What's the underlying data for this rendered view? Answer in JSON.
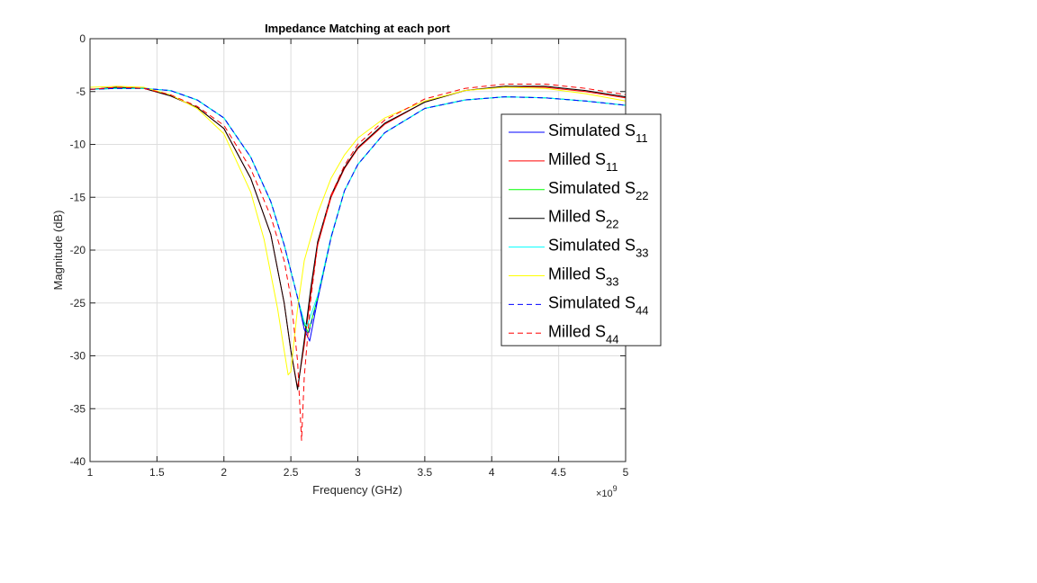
{
  "chart_data": {
    "type": "line",
    "title": "Impedance Matching at each port",
    "xlabel": "Frequency (GHz)",
    "ylabel": "Magnitude (dB)",
    "x_exponent_label": "×10",
    "x_exponent": "9",
    "xlim": [
      1,
      5
    ],
    "ylim": [
      -40,
      0
    ],
    "xticks": [
      1,
      1.5,
      2,
      2.5,
      3,
      3.5,
      4,
      4.5,
      5
    ],
    "yticks": [
      0,
      -5,
      -10,
      -15,
      -20,
      -25,
      -30,
      -35,
      -40
    ],
    "grid": true,
    "legend_position": "right",
    "series": [
      {
        "name": "Simulated S",
        "sub": "11",
        "color": "#0000ff",
        "dash": "solid",
        "x": [
          1.0,
          1.2,
          1.4,
          1.6,
          1.8,
          2.0,
          2.2,
          2.35,
          2.45,
          2.55,
          2.6,
          2.64,
          2.7,
          2.8,
          2.9,
          3.0,
          3.2,
          3.5,
          3.8,
          4.1,
          4.4,
          4.7,
          5.0
        ],
        "y": [
          -4.8,
          -4.7,
          -4.7,
          -4.9,
          -5.8,
          -7.5,
          -11.2,
          -15.4,
          -19.5,
          -24.5,
          -27.5,
          -28.6,
          -24.7,
          -18.8,
          -14.4,
          -11.9,
          -8.9,
          -6.6,
          -5.8,
          -5.5,
          -5.6,
          -5.9,
          -6.3
        ]
      },
      {
        "name": "Milled S",
        "sub": "11",
        "color": "#ff0000",
        "dash": "solid",
        "x": [
          1.0,
          1.2,
          1.4,
          1.6,
          1.8,
          2.0,
          2.2,
          2.35,
          2.45,
          2.5,
          2.55,
          2.6,
          2.65,
          2.7,
          2.8,
          2.9,
          3.0,
          3.2,
          3.5,
          3.8,
          4.1,
          4.4,
          4.7,
          5.0
        ],
        "y": [
          -4.8,
          -4.6,
          -4.7,
          -5.4,
          -6.5,
          -8.5,
          -13.2,
          -18.5,
          -25.0,
          -29.5,
          -33.0,
          -29.0,
          -24.0,
          -19.5,
          -15.0,
          -12.3,
          -10.4,
          -8.1,
          -6.0,
          -4.9,
          -4.5,
          -4.6,
          -5.0,
          -5.6
        ]
      },
      {
        "name": "Simulated S",
        "sub": "22",
        "color": "#00ff00",
        "dash": "solid",
        "x": [
          1.0,
          1.2,
          1.4,
          1.6,
          1.8,
          2.0,
          2.2,
          2.35,
          2.45,
          2.55,
          2.6,
          2.63,
          2.7,
          2.8,
          2.9,
          3.0,
          3.2,
          3.5,
          3.8,
          4.1,
          4.4,
          4.7,
          5.0
        ],
        "y": [
          -4.8,
          -4.7,
          -4.7,
          -4.9,
          -5.8,
          -7.5,
          -11.2,
          -15.4,
          -19.5,
          -24.5,
          -27.0,
          -27.8,
          -24.5,
          -18.8,
          -14.4,
          -11.9,
          -8.9,
          -6.6,
          -5.8,
          -5.5,
          -5.6,
          -5.9,
          -6.3
        ]
      },
      {
        "name": "Milled S",
        "sub": "22",
        "color": "#000000",
        "dash": "solid",
        "x": [
          1.0,
          1.2,
          1.4,
          1.6,
          1.8,
          2.0,
          2.2,
          2.35,
          2.45,
          2.5,
          2.55,
          2.6,
          2.65,
          2.7,
          2.8,
          2.9,
          3.0,
          3.2,
          3.5,
          3.8,
          4.1,
          4.4,
          4.7,
          5.0
        ],
        "y": [
          -4.8,
          -4.6,
          -4.7,
          -5.4,
          -6.5,
          -8.5,
          -13.2,
          -18.5,
          -25.0,
          -29.5,
          -33.2,
          -28.5,
          -23.5,
          -19.2,
          -14.8,
          -12.2,
          -10.3,
          -8.0,
          -6.0,
          -4.9,
          -4.5,
          -4.5,
          -4.9,
          -5.5
        ]
      },
      {
        "name": "Simulated S",
        "sub": "33",
        "color": "#00ffff",
        "dash": "solid",
        "x": [
          1.0,
          1.2,
          1.4,
          1.6,
          1.8,
          2.0,
          2.2,
          2.35,
          2.45,
          2.55,
          2.6,
          2.62,
          2.7,
          2.8,
          2.9,
          3.0,
          3.2,
          3.5,
          3.8,
          4.1,
          4.4,
          4.7,
          5.0
        ],
        "y": [
          -4.8,
          -4.7,
          -4.7,
          -4.9,
          -5.8,
          -7.5,
          -11.2,
          -15.4,
          -19.5,
          -24.5,
          -26.8,
          -27.2,
          -24.3,
          -18.7,
          -14.4,
          -11.9,
          -8.9,
          -6.6,
          -5.8,
          -5.5,
          -5.6,
          -5.9,
          -6.3
        ]
      },
      {
        "name": "Milled S",
        "sub": "33",
        "color": "#ffff00",
        "dash": "solid",
        "x": [
          1.0,
          1.2,
          1.4,
          1.6,
          1.8,
          2.0,
          2.2,
          2.3,
          2.4,
          2.45,
          2.48,
          2.5,
          2.52,
          2.55,
          2.6,
          2.7,
          2.8,
          2.9,
          3.0,
          3.2,
          3.5,
          3.8,
          4.1,
          4.4,
          4.7,
          5.0
        ],
        "y": [
          -4.6,
          -4.5,
          -4.6,
          -5.3,
          -6.6,
          -9.0,
          -14.5,
          -19.0,
          -25.5,
          -29.5,
          -31.8,
          -31.5,
          -29.0,
          -25.5,
          -21.0,
          -16.5,
          -13.2,
          -11.0,
          -9.4,
          -7.5,
          -5.9,
          -4.9,
          -4.6,
          -4.7,
          -5.2,
          -5.9
        ]
      },
      {
        "name": "Simulated S",
        "sub": "44",
        "color": "#0000ff",
        "dash": "dashed",
        "x": [
          1.0,
          1.2,
          1.4,
          1.6,
          1.8,
          2.0,
          2.2,
          2.35,
          2.45,
          2.55,
          2.6,
          2.63,
          2.7,
          2.8,
          2.9,
          3.0,
          3.2,
          3.5,
          3.8,
          4.1,
          4.4,
          4.7,
          5.0
        ],
        "y": [
          -4.8,
          -4.7,
          -4.7,
          -4.9,
          -5.8,
          -7.5,
          -11.2,
          -15.4,
          -19.5,
          -24.5,
          -27.3,
          -28.0,
          -24.6,
          -18.8,
          -14.4,
          -11.9,
          -8.9,
          -6.6,
          -5.8,
          -5.5,
          -5.6,
          -5.9,
          -6.3
        ]
      },
      {
        "name": "Milled S",
        "sub": "44",
        "color": "#ff0000",
        "dash": "dashed",
        "x": [
          1.0,
          1.2,
          1.4,
          1.6,
          1.8,
          2.0,
          2.2,
          2.35,
          2.45,
          2.5,
          2.55,
          2.58,
          2.6,
          2.65,
          2.7,
          2.8,
          2.9,
          3.0,
          3.2,
          3.5,
          3.8,
          4.1,
          4.4,
          4.7,
          5.0
        ],
        "y": [
          -4.8,
          -4.6,
          -4.7,
          -5.3,
          -6.4,
          -8.2,
          -12.3,
          -16.8,
          -21.0,
          -24.5,
          -30.5,
          -38.0,
          -32.0,
          -24.5,
          -19.5,
          -14.8,
          -12.0,
          -10.0,
          -7.7,
          -5.7,
          -4.7,
          -4.3,
          -4.3,
          -4.7,
          -5.3
        ]
      }
    ]
  }
}
